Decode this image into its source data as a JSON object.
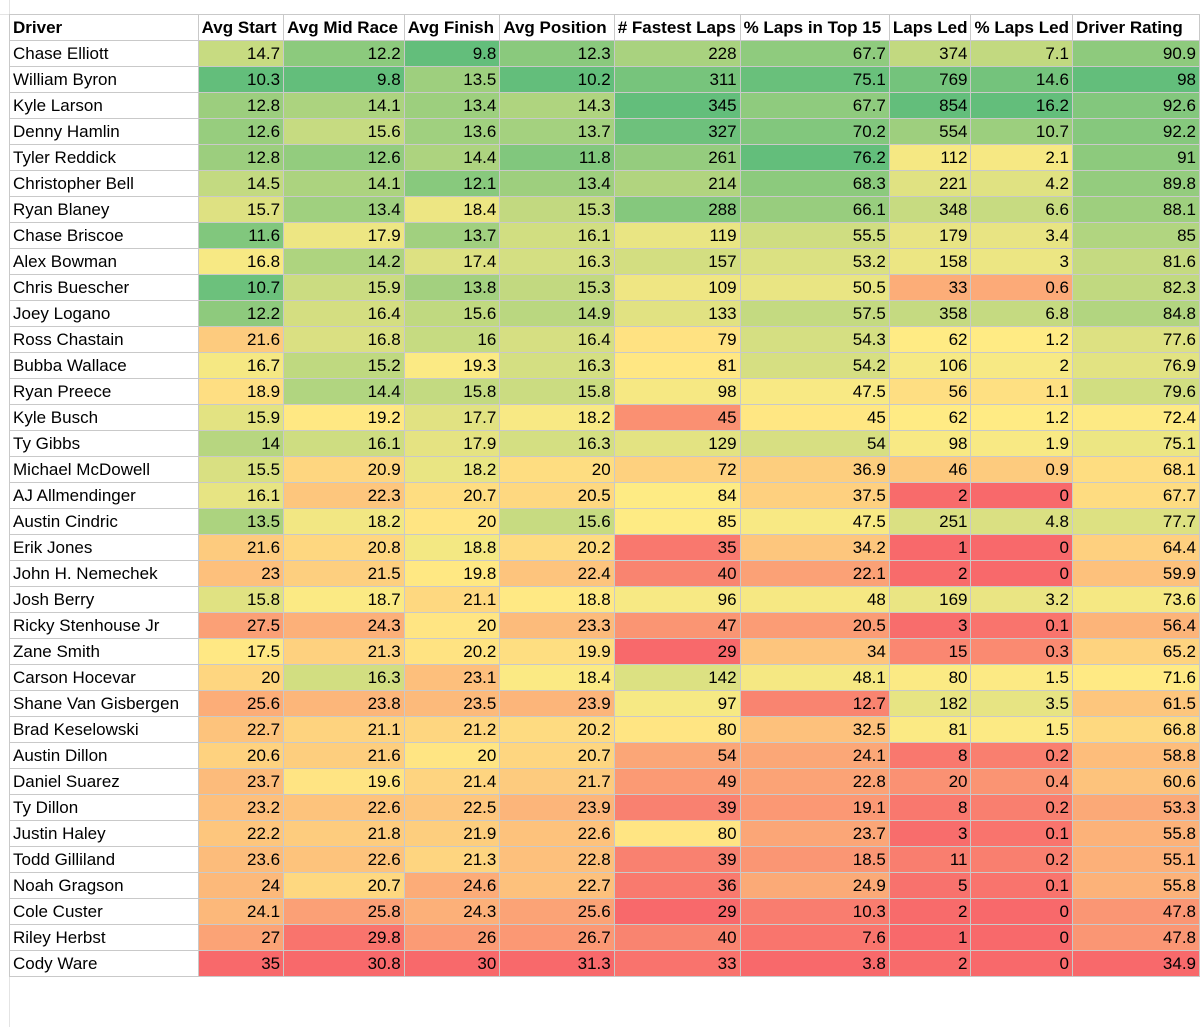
{
  "table": {
    "headers": [
      "Driver",
      "Avg Start",
      "Avg Mid Race",
      "Avg Finish",
      "Avg Position",
      "# Fastest Laps",
      "% Laps in Top 15",
      "Laps Led",
      "% Laps Led",
      "Driver Rating"
    ],
    "directions": [
      0,
      -1,
      -1,
      -1,
      -1,
      1,
      1,
      1,
      1,
      1
    ],
    "colors": {
      "good": "#63be7b",
      "mid": "#ffeb84",
      "bad": "#f8696b"
    },
    "rows": [
      [
        "Chase Elliott",
        "14.7",
        "12.2",
        "9.8",
        "12.3",
        "228",
        "67.7",
        "374",
        "7.1",
        "90.9"
      ],
      [
        "William Byron",
        "10.3",
        "9.8",
        "13.5",
        "10.2",
        "311",
        "75.1",
        "769",
        "14.6",
        "98"
      ],
      [
        "Kyle Larson",
        "12.8",
        "14.1",
        "13.4",
        "14.3",
        "345",
        "67.7",
        "854",
        "16.2",
        "92.6"
      ],
      [
        "Denny Hamlin",
        "12.6",
        "15.6",
        "13.6",
        "13.7",
        "327",
        "70.2",
        "554",
        "10.7",
        "92.2"
      ],
      [
        "Tyler Reddick",
        "12.8",
        "12.6",
        "14.4",
        "11.8",
        "261",
        "76.2",
        "112",
        "2.1",
        "91"
      ],
      [
        "Christopher Bell",
        "14.5",
        "14.1",
        "12.1",
        "13.4",
        "214",
        "68.3",
        "221",
        "4.2",
        "89.8"
      ],
      [
        "Ryan Blaney",
        "15.7",
        "13.4",
        "18.4",
        "15.3",
        "288",
        "66.1",
        "348",
        "6.6",
        "88.1"
      ],
      [
        "Chase Briscoe",
        "11.6",
        "17.9",
        "13.7",
        "16.1",
        "119",
        "55.5",
        "179",
        "3.4",
        "85"
      ],
      [
        "Alex Bowman",
        "16.8",
        "14.2",
        "17.4",
        "16.3",
        "157",
        "53.2",
        "158",
        "3",
        "81.6"
      ],
      [
        "Chris Buescher",
        "10.7",
        "15.9",
        "13.8",
        "15.3",
        "109",
        "50.5",
        "33",
        "0.6",
        "82.3"
      ],
      [
        "Joey Logano",
        "12.2",
        "16.4",
        "15.6",
        "14.9",
        "133",
        "57.5",
        "358",
        "6.8",
        "84.8"
      ],
      [
        "Ross Chastain",
        "21.6",
        "16.8",
        "16",
        "16.4",
        "79",
        "54.3",
        "62",
        "1.2",
        "77.6"
      ],
      [
        "Bubba Wallace",
        "16.7",
        "15.2",
        "19.3",
        "16.3",
        "81",
        "54.2",
        "106",
        "2",
        "76.9"
      ],
      [
        "Ryan Preece",
        "18.9",
        "14.4",
        "15.8",
        "15.8",
        "98",
        "47.5",
        "56",
        "1.1",
        "79.6"
      ],
      [
        "Kyle Busch",
        "15.9",
        "19.2",
        "17.7",
        "18.2",
        "45",
        "45",
        "62",
        "1.2",
        "72.4"
      ],
      [
        "Ty Gibbs",
        "14",
        "16.1",
        "17.9",
        "16.3",
        "129",
        "54",
        "98",
        "1.9",
        "75.1"
      ],
      [
        "Michael McDowell",
        "15.5",
        "20.9",
        "18.2",
        "20",
        "72",
        "36.9",
        "46",
        "0.9",
        "68.1"
      ],
      [
        "AJ Allmendinger",
        "16.1",
        "22.3",
        "20.7",
        "20.5",
        "84",
        "37.5",
        "2",
        "0",
        "67.7"
      ],
      [
        "Austin Cindric",
        "13.5",
        "18.2",
        "20",
        "15.6",
        "85",
        "47.5",
        "251",
        "4.8",
        "77.7"
      ],
      [
        "Erik Jones",
        "21.6",
        "20.8",
        "18.8",
        "20.2",
        "35",
        "34.2",
        "1",
        "0",
        "64.4"
      ],
      [
        "John H. Nemechek",
        "23",
        "21.5",
        "19.8",
        "22.4",
        "40",
        "22.1",
        "2",
        "0",
        "59.9"
      ],
      [
        "Josh Berry",
        "15.8",
        "18.7",
        "21.1",
        "18.8",
        "96",
        "48",
        "169",
        "3.2",
        "73.6"
      ],
      [
        "Ricky Stenhouse Jr",
        "27.5",
        "24.3",
        "20",
        "23.3",
        "47",
        "20.5",
        "3",
        "0.1",
        "56.4"
      ],
      [
        "Zane Smith",
        "17.5",
        "21.3",
        "20.2",
        "19.9",
        "29",
        "34",
        "15",
        "0.3",
        "65.2"
      ],
      [
        "Carson Hocevar",
        "20",
        "16.3",
        "23.1",
        "18.4",
        "142",
        "48.1",
        "80",
        "1.5",
        "71.6"
      ],
      [
        "Shane Van Gisbergen",
        "25.6",
        "23.8",
        "23.5",
        "23.9",
        "97",
        "12.7",
        "182",
        "3.5",
        "61.5"
      ],
      [
        "Brad Keselowski",
        "22.7",
        "21.1",
        "21.2",
        "20.2",
        "80",
        "32.5",
        "81",
        "1.5",
        "66.8"
      ],
      [
        "Austin Dillon",
        "20.6",
        "21.6",
        "20",
        "20.7",
        "54",
        "24.1",
        "8",
        "0.2",
        "58.8"
      ],
      [
        "Daniel Suarez",
        "23.7",
        "19.6",
        "21.4",
        "21.7",
        "49",
        "22.8",
        "20",
        "0.4",
        "60.6"
      ],
      [
        "Ty Dillon",
        "23.2",
        "22.6",
        "22.5",
        "23.9",
        "39",
        "19.1",
        "8",
        "0.2",
        "53.3"
      ],
      [
        "Justin Haley",
        "22.2",
        "21.8",
        "21.9",
        "22.6",
        "80",
        "23.7",
        "3",
        "0.1",
        "55.8"
      ],
      [
        "Todd Gilliland",
        "23.6",
        "22.6",
        "21.3",
        "22.8",
        "39",
        "18.5",
        "11",
        "0.2",
        "55.1"
      ],
      [
        "Noah Gragson",
        "24",
        "20.7",
        "24.6",
        "22.7",
        "36",
        "24.9",
        "5",
        "0.1",
        "55.8"
      ],
      [
        "Cole Custer",
        "24.1",
        "25.8",
        "24.3",
        "25.6",
        "29",
        "10.3",
        "2",
        "0",
        "47.8"
      ],
      [
        "Riley Herbst",
        "27",
        "29.8",
        "26",
        "26.7",
        "40",
        "7.6",
        "1",
        "0",
        "47.8"
      ],
      [
        "Cody Ware",
        "35",
        "30.8",
        "30",
        "31.3",
        "33",
        "3.8",
        "2",
        "0",
        "34.9"
      ]
    ]
  }
}
